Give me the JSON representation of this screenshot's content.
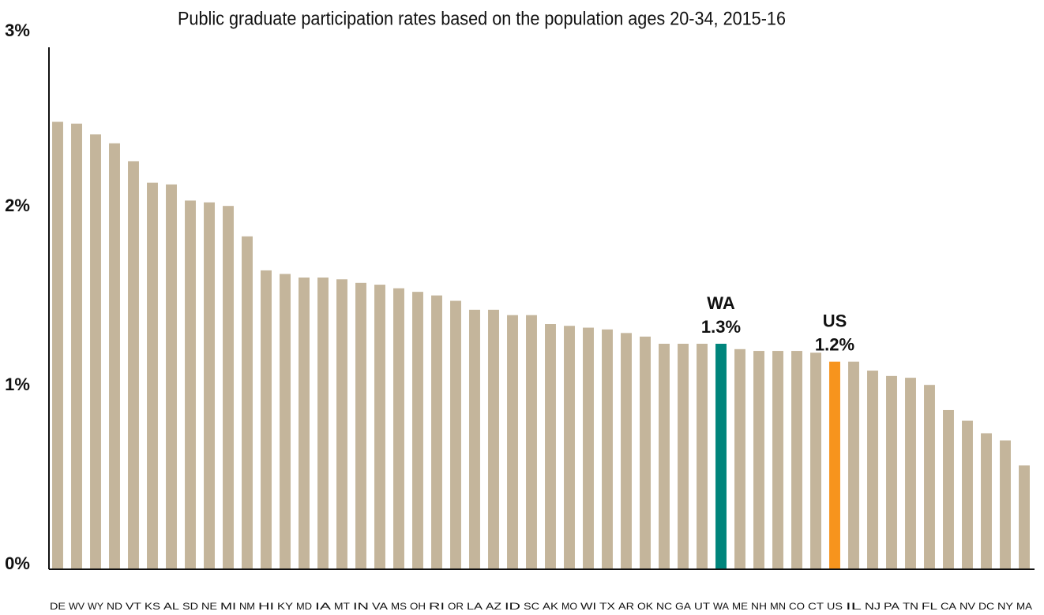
{
  "chart_data": {
    "type": "bar",
    "title": "Public graduate participation rates based on the population ages 20-34, 2015-16",
    "categories": [
      "DE",
      "WV",
      "WY",
      "ND",
      "VT",
      "KS",
      "AL",
      "SD",
      "NE",
      "MI",
      "NM",
      "HI",
      "KY",
      "MD",
      "IA",
      "MT",
      "IN",
      "VA",
      "MS",
      "OH",
      "RI",
      "OR",
      "LA",
      "AZ",
      "ID",
      "SC",
      "AK",
      "MO",
      "WI",
      "TX",
      "AR",
      "OK",
      "NC",
      "GA",
      "UT",
      "WA",
      "ME",
      "NH",
      "MN",
      "CO",
      "CT",
      "US",
      "IL",
      "NJ",
      "PA",
      "TN",
      "FL",
      "CA",
      "NV",
      "DC",
      "NY",
      "MA"
    ],
    "values": [
      2.5,
      2.49,
      2.43,
      2.38,
      2.28,
      2.16,
      2.15,
      2.06,
      2.05,
      2.03,
      1.86,
      1.67,
      1.65,
      1.63,
      1.63,
      1.62,
      1.6,
      1.59,
      1.57,
      1.55,
      1.53,
      1.5,
      1.45,
      1.45,
      1.42,
      1.42,
      1.37,
      1.36,
      1.35,
      1.34,
      1.32,
      1.3,
      1.26,
      1.26,
      1.26,
      1.26,
      1.23,
      1.22,
      1.22,
      1.22,
      1.21,
      1.16,
      1.16,
      1.11,
      1.08,
      1.07,
      1.03,
      0.89,
      0.83,
      0.76,
      0.72,
      0.58
    ],
    "value_labels": [
      null,
      null,
      null,
      null,
      null,
      null,
      null,
      null,
      null,
      null,
      null,
      null,
      null,
      null,
      null,
      null,
      null,
      null,
      null,
      null,
      null,
      null,
      null,
      null,
      null,
      null,
      null,
      null,
      null,
      null,
      null,
      null,
      null,
      null,
      null,
      "1.3%",
      null,
      null,
      null,
      null,
      null,
      "1.2%",
      null,
      null,
      null,
      null,
      null,
      null,
      null,
      null,
      null,
      null
    ],
    "color": "#c4b59b",
    "highlight_colors": {
      "WA": "#00857c",
      "US": "#f7941d"
    },
    "ylim": [
      0,
      3
    ],
    "yticks": [
      {
        "value": 0,
        "label": "0%"
      },
      {
        "value": 1,
        "label": "1%"
      },
      {
        "value": 2,
        "label": "2%"
      },
      {
        "value": 3,
        "label": "3%"
      }
    ],
    "grid": false
  }
}
